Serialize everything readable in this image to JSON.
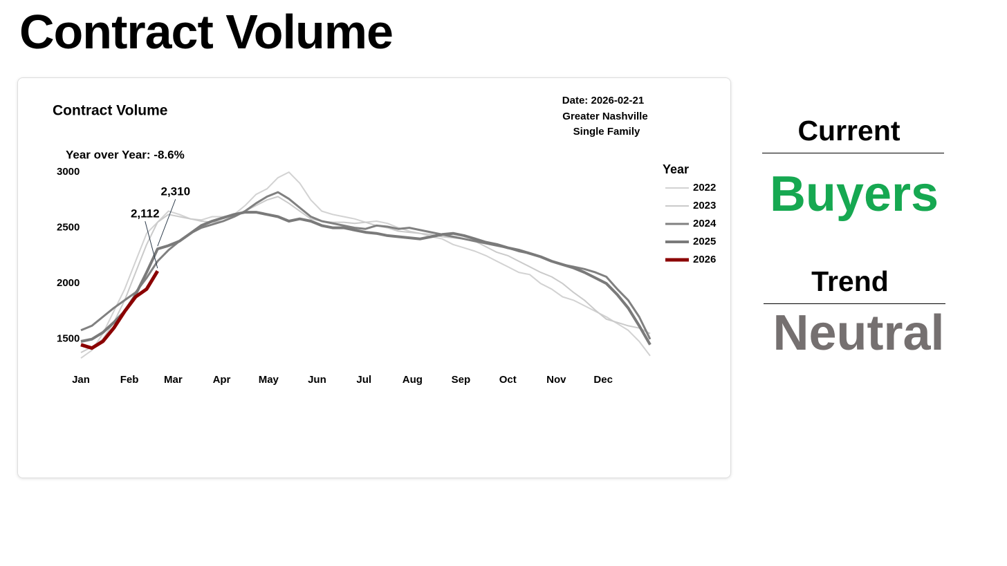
{
  "title": "Contract Volume",
  "chart_data": {
    "type": "line",
    "title": "Contract Volume",
    "subtitle": [
      "Date: 2026-02-21",
      "Greater Nashville",
      "Single Family"
    ],
    "annotation": "Year over Year: -8.6%",
    "legend_title": "Year",
    "legend": "right",
    "x": [
      1,
      8,
      15,
      22,
      29,
      36,
      43,
      50,
      57,
      64,
      71,
      78,
      85,
      92,
      99,
      106,
      113,
      120,
      127,
      134,
      141,
      148,
      155,
      162,
      169,
      176,
      183,
      190,
      197,
      204,
      211,
      218,
      225,
      232,
      239,
      246,
      253,
      260,
      267,
      274,
      281,
      288,
      295,
      302,
      309,
      316,
      323,
      330,
      337,
      344,
      351,
      358,
      365
    ],
    "xlim": [
      1,
      365
    ],
    "xticks": [
      {
        "value": 1,
        "label": "Jan"
      },
      {
        "value": 32,
        "label": "Feb"
      },
      {
        "value": 60,
        "label": "Mar"
      },
      {
        "value": 91,
        "label": "Apr"
      },
      {
        "value": 121,
        "label": "May"
      },
      {
        "value": 152,
        "label": "Jun"
      },
      {
        "value": 182,
        "label": "Jul"
      },
      {
        "value": 213,
        "label": "Aug"
      },
      {
        "value": 244,
        "label": "Sep"
      },
      {
        "value": 274,
        "label": "Oct"
      },
      {
        "value": 305,
        "label": "Nov"
      },
      {
        "value": 335,
        "label": "Dec"
      }
    ],
    "ylim": [
      1300,
      3050
    ],
    "yticks": [
      1500,
      2000,
      2500,
      3000
    ],
    "series": [
      {
        "name": "2022",
        "color": "#d2d2d2",
        "line_width": 2,
        "values": [
          1330,
          1400,
          1550,
          1750,
          1950,
          2200,
          2450,
          2550,
          2650,
          2620,
          2580,
          2570,
          2600,
          2600,
          2620,
          2700,
          2800,
          2850,
          2950,
          3000,
          2900,
          2750,
          2650,
          2620,
          2600,
          2580,
          2550,
          2560,
          2540,
          2500,
          2470,
          2450,
          2420,
          2400,
          2350,
          2320,
          2290,
          2250,
          2200,
          2150,
          2100,
          2080,
          2000,
          1950,
          1880,
          1850,
          1800,
          1750,
          1700,
          1640,
          1580,
          1480,
          1350
        ]
      },
      {
        "name": "2023",
        "color": "#cacaca",
        "line_width": 2,
        "values": [
          1380,
          1430,
          1500,
          1650,
          1850,
          2100,
          2350,
          2550,
          2620,
          2600,
          2580,
          2560,
          2550,
          2560,
          2600,
          2650,
          2700,
          2750,
          2780,
          2720,
          2650,
          2580,
          2560,
          2550,
          2550,
          2540,
          2550,
          2520,
          2500,
          2470,
          2460,
          2450,
          2440,
          2420,
          2410,
          2400,
          2380,
          2330,
          2280,
          2250,
          2200,
          2150,
          2100,
          2060,
          2000,
          1920,
          1850,
          1760,
          1680,
          1650,
          1620,
          1600,
          1550
        ]
      },
      {
        "name": "2024",
        "color": "#808080",
        "line_width": 3,
        "values": [
          1580,
          1620,
          1700,
          1780,
          1850,
          1920,
          2050,
          2200,
          2300,
          2380,
          2450,
          2500,
          2530,
          2560,
          2600,
          2650,
          2720,
          2780,
          2820,
          2760,
          2680,
          2600,
          2560,
          2540,
          2520,
          2500,
          2490,
          2520,
          2510,
          2490,
          2500,
          2480,
          2460,
          2440,
          2420,
          2400,
          2380,
          2360,
          2340,
          2320,
          2290,
          2270,
          2240,
          2200,
          2170,
          2150,
          2130,
          2100,
          2060,
          1950,
          1850,
          1700,
          1500
        ]
      },
      {
        "name": "2025",
        "color": "#7a7a7a",
        "line_width": 4,
        "values": [
          1480,
          1500,
          1560,
          1650,
          1750,
          1900,
          2100,
          2310,
          2340,
          2380,
          2450,
          2520,
          2560,
          2590,
          2620,
          2640,
          2640,
          2620,
          2600,
          2560,
          2580,
          2560,
          2520,
          2500,
          2500,
          2480,
          2460,
          2450,
          2430,
          2420,
          2410,
          2400,
          2420,
          2440,
          2450,
          2430,
          2400,
          2370,
          2350,
          2320,
          2300,
          2270,
          2240,
          2200,
          2170,
          2140,
          2100,
          2050,
          2000,
          1900,
          1780,
          1620,
          1450
        ],
        "value_labels": [
          null,
          null,
          null,
          null,
          null,
          null,
          null,
          "2,310",
          null,
          null,
          null,
          null,
          null,
          null,
          null,
          null,
          null,
          null,
          null,
          null,
          null,
          null,
          null,
          null,
          null,
          null,
          null,
          null,
          null,
          null,
          null,
          null,
          null,
          null,
          null,
          null,
          null,
          null,
          null,
          null,
          null,
          null,
          null,
          null,
          null,
          null,
          null,
          null,
          null,
          null,
          null,
          null,
          null
        ]
      },
      {
        "name": "2026",
        "color": "#8b0000",
        "line_width": 5,
        "values": [
          1450,
          1420,
          1480,
          1600,
          1750,
          1880,
          1950,
          2112,
          null,
          null,
          null,
          null,
          null,
          null,
          null,
          null,
          null,
          null,
          null,
          null,
          null,
          null,
          null,
          null,
          null,
          null,
          null,
          null,
          null,
          null,
          null,
          null,
          null,
          null,
          null,
          null,
          null,
          null,
          null,
          null,
          null,
          null,
          null,
          null,
          null,
          null,
          null,
          null,
          null,
          null,
          null,
          null,
          null
        ],
        "value_labels": [
          null,
          null,
          null,
          null,
          null,
          null,
          null,
          "2,112",
          null,
          null,
          null,
          null,
          null,
          null,
          null,
          null,
          null,
          null,
          null,
          null,
          null,
          null,
          null,
          null,
          null,
          null,
          null,
          null,
          null,
          null,
          null,
          null,
          null,
          null,
          null,
          null,
          null,
          null,
          null,
          null,
          null,
          null,
          null,
          null,
          null,
          null,
          null,
          null,
          null,
          null,
          null,
          null,
          null
        ]
      }
    ]
  },
  "panel": {
    "current_label": "Current",
    "current_value": "Buyers",
    "trend_label": "Trend",
    "trend_value": "Neutral"
  }
}
